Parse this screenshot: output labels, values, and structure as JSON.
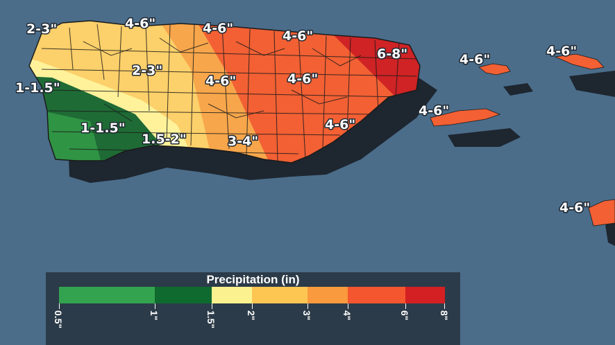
{
  "map": {
    "region": "Puerto Rico",
    "ocean_color": "#4b6d8a",
    "shadow_color": "#1e2630",
    "outline_color": "#1a1a1a",
    "zones": [
      {
        "range": "1-1.5\"",
        "color": "#1f6b35"
      },
      {
        "range": "1.5-2\"",
        "color": "#fff29a"
      },
      {
        "range": "2-3\"",
        "color": "#fcd06a"
      },
      {
        "range": "3-4\"",
        "color": "#f7a64b"
      },
      {
        "range": "4-6\"",
        "color": "#f26034"
      },
      {
        "range": "6-8\"",
        "color": "#cf2325"
      }
    ],
    "labels": [
      {
        "id": "nw-coast",
        "text": "2-3\""
      },
      {
        "id": "north-central",
        "text": "4-6\""
      },
      {
        "id": "north-central-east",
        "text": "4-6\""
      },
      {
        "id": "northeast",
        "text": "4-6\""
      },
      {
        "id": "far-northeast",
        "text": "6-8\""
      },
      {
        "id": "culebra",
        "text": "4-6\""
      },
      {
        "id": "virgin-islands",
        "text": "4-6\""
      },
      {
        "id": "west-coast",
        "text": "1-1.5\""
      },
      {
        "id": "central-west",
        "text": "2-3\""
      },
      {
        "id": "central",
        "text": "4-6\""
      },
      {
        "id": "central-east",
        "text": "4-6\""
      },
      {
        "id": "vieques",
        "text": "4-6\""
      },
      {
        "id": "southwest",
        "text": "1-1.5\""
      },
      {
        "id": "south-central-west",
        "text": "1.5-2\""
      },
      {
        "id": "south-central",
        "text": "3-4\""
      },
      {
        "id": "southeast",
        "text": "4-6\""
      },
      {
        "id": "st-croix",
        "text": "4-6\""
      }
    ]
  },
  "legend": {
    "title": "Precipitation (in)",
    "bins": [
      {
        "from": 0.5,
        "to": 1,
        "color": "#33a350"
      },
      {
        "from": 1,
        "to": 1.5,
        "color": "#0f6a2f"
      },
      {
        "from": 1.5,
        "to": 2,
        "color": "#fbf28f"
      },
      {
        "from": 2,
        "to": 3,
        "color": "#fdc653"
      },
      {
        "from": 3,
        "to": 4,
        "color": "#f99a3e"
      },
      {
        "from": 4,
        "to": 6,
        "color": "#f4562f"
      },
      {
        "from": 6,
        "to": 8,
        "color": "#d42022"
      }
    ],
    "ticks": [
      "0.5\"",
      "1\"",
      "1.5\"",
      "2\"",
      "3\"",
      "4\"",
      "6\"",
      "8\""
    ]
  }
}
